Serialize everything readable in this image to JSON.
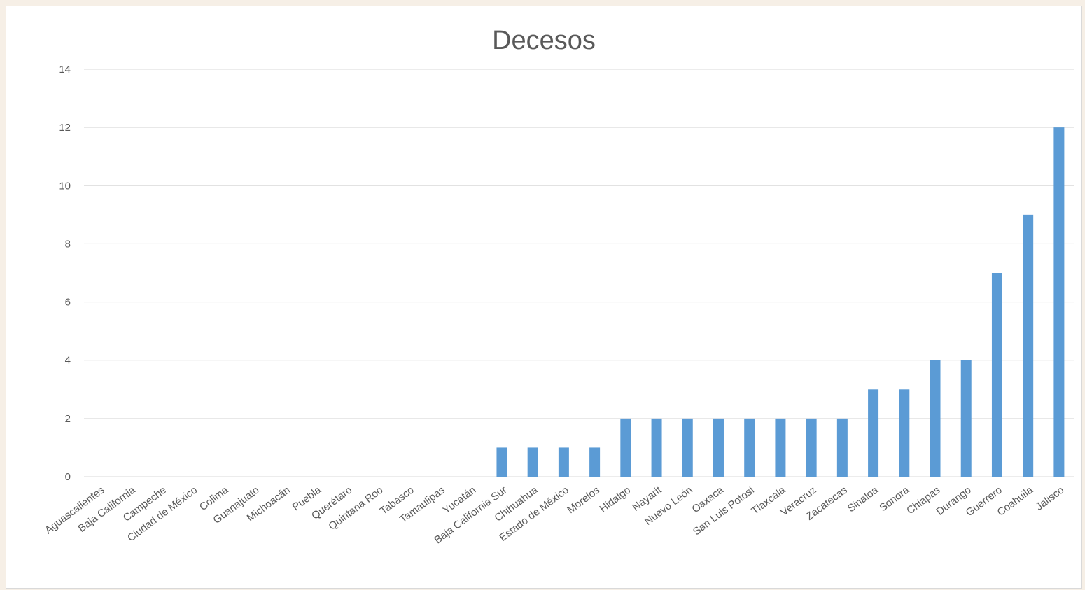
{
  "chart_data": {
    "type": "bar",
    "title": "Decesos",
    "xlabel": "",
    "ylabel": "",
    "ylim": [
      0,
      14
    ],
    "yticks": [
      0,
      2,
      4,
      6,
      8,
      10,
      12,
      14
    ],
    "grid": true,
    "bar_color": "#5b9bd5",
    "grid_color": "#d9d9d9",
    "categories": [
      "Aguascalientes",
      "Baja California",
      "Campeche",
      "Ciudad de México",
      "Colima",
      "Guanajuato",
      "Michoacán",
      "Puebla",
      "Querétaro",
      "Quintana Roo",
      "Tabasco",
      "Tamaulipas",
      "Yucatán",
      "Baja California Sur",
      "Chihuahua",
      "Estado de México",
      "Morelos",
      "Hidalgo",
      "Nayarit",
      "Nuevo León",
      "Oaxaca",
      "San Luis Potosí",
      "Tlaxcala",
      "Veracruz",
      "Zacatecas",
      "Sinaloa",
      "Sonora",
      "Chiapas",
      "Durango",
      "Guerrero",
      "Coahuila",
      "Jalisco"
    ],
    "values": [
      0,
      0,
      0,
      0,
      0,
      0,
      0,
      0,
      0,
      0,
      0,
      0,
      0,
      1,
      1,
      1,
      1,
      2,
      2,
      2,
      2,
      2,
      2,
      2,
      2,
      3,
      3,
      4,
      4,
      7,
      9,
      12
    ]
  }
}
